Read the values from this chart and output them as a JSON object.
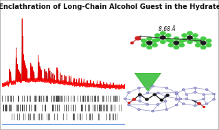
{
  "title": "Enclathration of Long-Chain Alcohol Guest in the Hydrate",
  "title_fontsize": 7.2,
  "background_color": "#ffffff",
  "border_color": "#aaaaaa",
  "xrd_color_observed": "#ff0000",
  "xrd_color_calculated": "#000000",
  "xrd_color_difference": "#0055cc",
  "annotation_distance": "8.68 Å",
  "annotation_fontsize": 5.5,
  "green_color": "#44cc44",
  "carbon_color": "#1a1a1a",
  "oxygen_color": "#cc2222",
  "cage_edge_color": "#9999cc",
  "cage_node_color": "#aaaadd",
  "fig_width": 3.19,
  "fig_height": 1.89,
  "dpi": 100
}
